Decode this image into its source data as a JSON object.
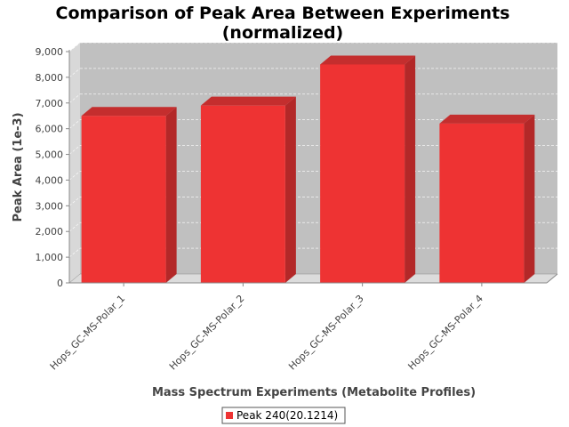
{
  "chart_data": {
    "type": "bar",
    "title": "Comparison of Peak Area Between Experiments",
    "subtitle": "(normalized)",
    "xlabel": "Mass Spectrum Experiments (Metabolite Profiles)",
    "ylabel": "Peak Area (1e-3)",
    "categories": [
      "Hops_GC-MS-Polar_1",
      "Hops_GC-MS-Polar_2",
      "Hops_GC-MS-Polar_3",
      "Hops_GC-MS-Polar_4"
    ],
    "series": [
      {
        "name": "Peak 240(20.1214)",
        "values": [
          6500,
          6900,
          8500,
          6200
        ],
        "color": "#ee3333"
      }
    ],
    "ylim": [
      0,
      9000
    ],
    "yticks": [
      "0",
      "1,000",
      "2,000",
      "3,000",
      "4,000",
      "5,000",
      "6,000",
      "7,000",
      "8,000",
      "9,000"
    ],
    "grid": true,
    "legend_position": "bottom",
    "plot_background": "#c0c0c0"
  }
}
